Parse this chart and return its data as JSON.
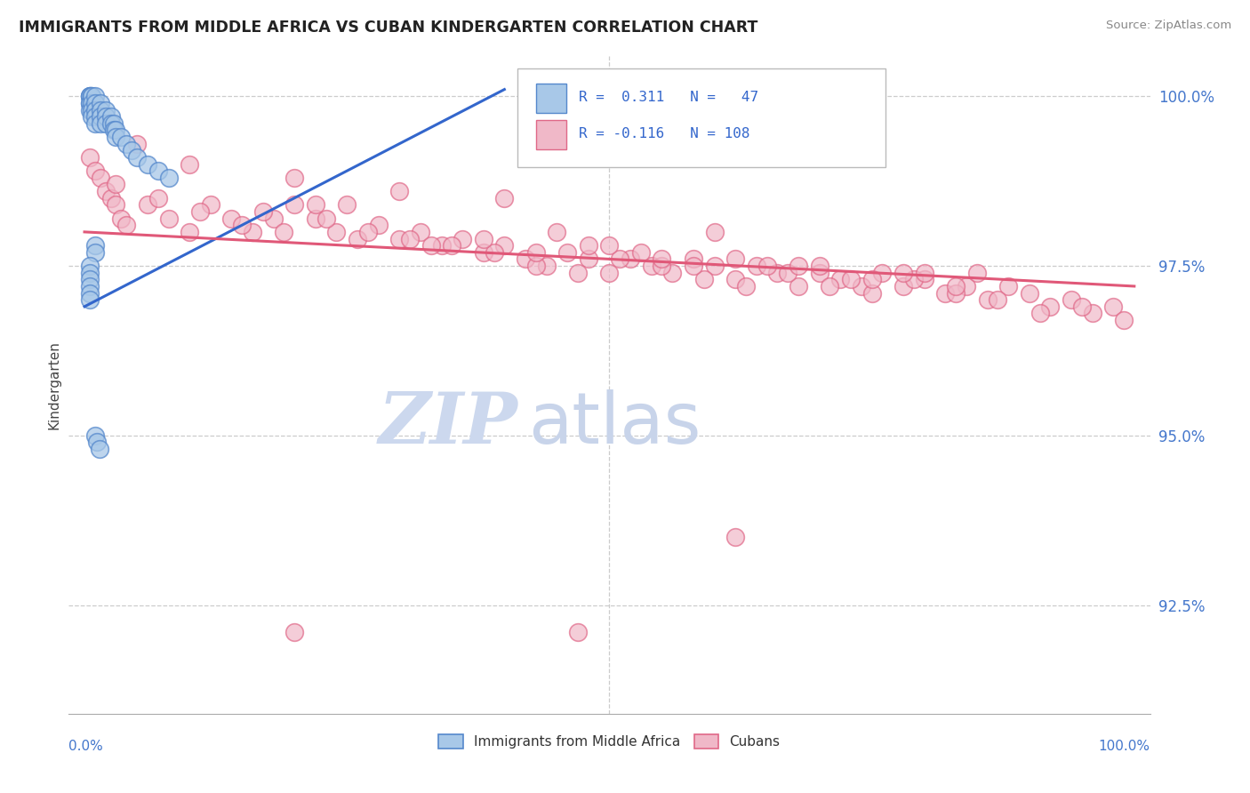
{
  "title": "IMMIGRANTS FROM MIDDLE AFRICA VS CUBAN KINDERGARTEN CORRELATION CHART",
  "source": "Source: ZipAtlas.com",
  "ylabel": "Kindergarten",
  "ytick_labels": [
    "92.5%",
    "95.0%",
    "97.5%",
    "100.0%"
  ],
  "ytick_values": [
    0.925,
    0.95,
    0.975,
    1.0
  ],
  "xrange": [
    0.0,
    1.0
  ],
  "yrange": [
    0.909,
    1.006
  ],
  "legend_line1": "R =  0.311   N =   47",
  "legend_line2": "R = -0.116   N = 108",
  "blue_fill": "#a8c8e8",
  "blue_edge": "#5588cc",
  "pink_fill": "#f0b8c8",
  "pink_edge": "#e06888",
  "trendline_blue": "#3366cc",
  "trendline_pink": "#e05878",
  "watermark_zip_color": "#ccd8ee",
  "watermark_atlas_color": "#c8d4ea",
  "background_color": "#ffffff",
  "grid_color": "#cccccc",
  "blue_trendline_x0": 0.0,
  "blue_trendline_y0": 0.969,
  "blue_trendline_x1": 0.4,
  "blue_trendline_y1": 1.001,
  "pink_trendline_x0": 0.0,
  "pink_trendline_y0": 0.98,
  "pink_trendline_x1": 1.0,
  "pink_trendline_y1": 0.972,
  "blue_x": [
    0.005,
    0.005,
    0.005,
    0.005,
    0.005,
    0.005,
    0.007,
    0.007,
    0.007,
    0.007,
    0.007,
    0.01,
    0.01,
    0.01,
    0.01,
    0.01,
    0.015,
    0.015,
    0.015,
    0.015,
    0.02,
    0.02,
    0.02,
    0.025,
    0.025,
    0.028,
    0.028,
    0.03,
    0.03,
    0.035,
    0.04,
    0.045,
    0.05,
    0.06,
    0.07,
    0.08,
    0.01,
    0.01,
    0.005,
    0.005,
    0.005,
    0.005,
    0.005,
    0.005,
    0.01,
    0.012,
    0.014
  ],
  "blue_y": [
    1.0,
    1.0,
    1.0,
    0.999,
    0.999,
    0.998,
    1.0,
    1.0,
    0.999,
    0.998,
    0.997,
    1.0,
    0.999,
    0.998,
    0.997,
    0.996,
    0.999,
    0.998,
    0.997,
    0.996,
    0.998,
    0.997,
    0.996,
    0.997,
    0.996,
    0.996,
    0.995,
    0.995,
    0.994,
    0.994,
    0.993,
    0.992,
    0.991,
    0.99,
    0.989,
    0.988,
    0.978,
    0.977,
    0.975,
    0.974,
    0.973,
    0.972,
    0.971,
    0.97,
    0.95,
    0.949,
    0.948
  ],
  "pink_x": [
    0.005,
    0.01,
    0.015,
    0.02,
    0.025,
    0.03,
    0.035,
    0.04,
    0.06,
    0.08,
    0.1,
    0.12,
    0.14,
    0.16,
    0.18,
    0.2,
    0.22,
    0.24,
    0.26,
    0.28,
    0.3,
    0.32,
    0.34,
    0.36,
    0.38,
    0.4,
    0.42,
    0.44,
    0.46,
    0.48,
    0.5,
    0.52,
    0.54,
    0.56,
    0.58,
    0.6,
    0.62,
    0.64,
    0.66,
    0.68,
    0.7,
    0.72,
    0.74,
    0.76,
    0.78,
    0.8,
    0.82,
    0.84,
    0.86,
    0.88,
    0.9,
    0.92,
    0.94,
    0.96,
    0.98,
    0.03,
    0.07,
    0.11,
    0.15,
    0.19,
    0.23,
    0.27,
    0.31,
    0.35,
    0.39,
    0.43,
    0.47,
    0.51,
    0.55,
    0.59,
    0.63,
    0.67,
    0.71,
    0.75,
    0.79,
    0.83,
    0.87,
    0.91,
    0.95,
    0.99,
    0.05,
    0.1,
    0.2,
    0.3,
    0.4,
    0.5,
    0.6,
    0.7,
    0.8,
    0.55,
    0.65,
    0.75,
    0.85,
    0.25,
    0.45,
    0.17,
    0.33,
    0.38,
    0.43,
    0.22,
    0.48,
    0.53,
    0.58,
    0.62,
    0.68,
    0.73,
    0.78,
    0.83
  ],
  "pink_y": [
    0.991,
    0.989,
    0.988,
    0.986,
    0.985,
    0.984,
    0.982,
    0.981,
    0.984,
    0.982,
    0.98,
    0.984,
    0.982,
    0.98,
    0.982,
    0.984,
    0.982,
    0.98,
    0.979,
    0.981,
    0.979,
    0.98,
    0.978,
    0.979,
    0.977,
    0.978,
    0.976,
    0.975,
    0.977,
    0.976,
    0.974,
    0.976,
    0.975,
    0.974,
    0.976,
    0.975,
    0.973,
    0.975,
    0.974,
    0.972,
    0.974,
    0.973,
    0.972,
    0.974,
    0.972,
    0.973,
    0.971,
    0.972,
    0.97,
    0.972,
    0.971,
    0.969,
    0.97,
    0.968,
    0.969,
    0.987,
    0.985,
    0.983,
    0.981,
    0.98,
    0.982,
    0.98,
    0.979,
    0.978,
    0.977,
    0.975,
    0.974,
    0.976,
    0.975,
    0.973,
    0.972,
    0.974,
    0.972,
    0.971,
    0.973,
    0.971,
    0.97,
    0.968,
    0.969,
    0.967,
    0.993,
    0.99,
    0.988,
    0.986,
    0.985,
    0.978,
    0.98,
    0.975,
    0.974,
    0.976,
    0.975,
    0.973,
    0.974,
    0.984,
    0.98,
    0.983,
    0.978,
    0.979,
    0.977,
    0.984,
    0.978,
    0.977,
    0.975,
    0.976,
    0.975,
    0.973,
    0.974,
    0.972
  ]
}
